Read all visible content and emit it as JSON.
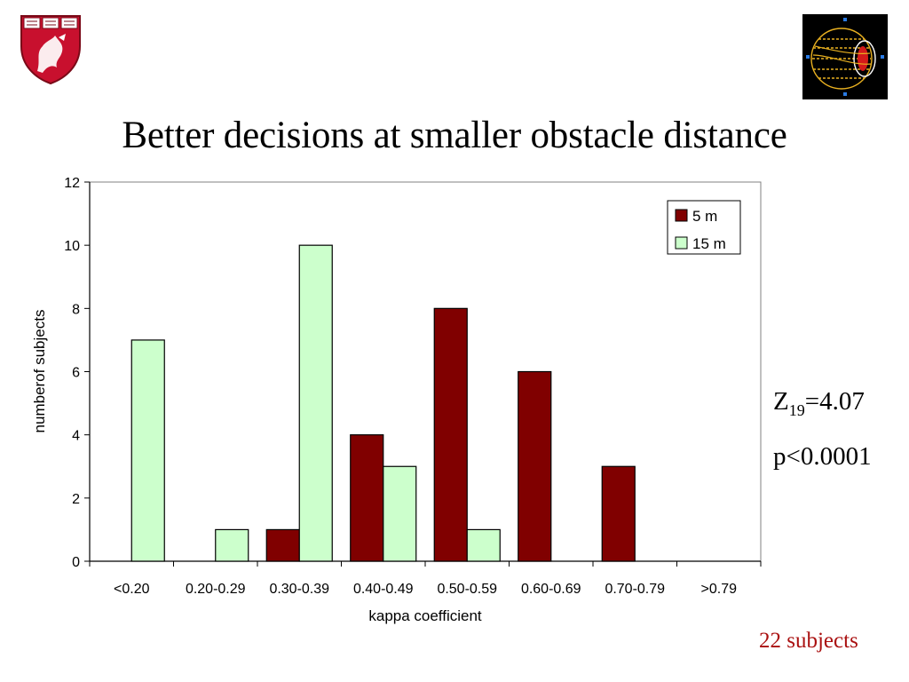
{
  "slide": {
    "title": "Better decisions at smaller obstacle distance",
    "stat_z_main": "Z",
    "stat_z_sub": "19",
    "stat_z_value": "=4.07",
    "stat_p": "p<0.0001",
    "footnote": "22 subjects"
  },
  "colors": {
    "series_5m": "#800000",
    "series_15m": "#ccffcc",
    "footnote": "#aa1111",
    "shield_red": "#c8102e"
  },
  "icons": {
    "left_logo": "harvard-shield-icon",
    "right_logo": "wireframe-globe-icon"
  },
  "chart_data": {
    "type": "bar",
    "title": "",
    "xlabel": "kappa coefficient",
    "ylabel": "numberof subjects",
    "ylim": [
      0,
      12
    ],
    "yticks": [
      0,
      2,
      4,
      6,
      8,
      10,
      12
    ],
    "grid": false,
    "legend_position": "top-right",
    "categories": [
      "<0.20",
      "0.20-0.29",
      "0.30-0.39",
      "0.40-0.49",
      "0.50-0.59",
      "0.60-0.69",
      "0.70-0.79",
      ">0.79"
    ],
    "series": [
      {
        "name": "5 m",
        "color": "#800000",
        "values": [
          0,
          0,
          1,
          4,
          8,
          6,
          3,
          0
        ]
      },
      {
        "name": "15 m",
        "color": "#ccffcc",
        "values": [
          7,
          1,
          10,
          3,
          1,
          0,
          0,
          0
        ]
      }
    ]
  }
}
